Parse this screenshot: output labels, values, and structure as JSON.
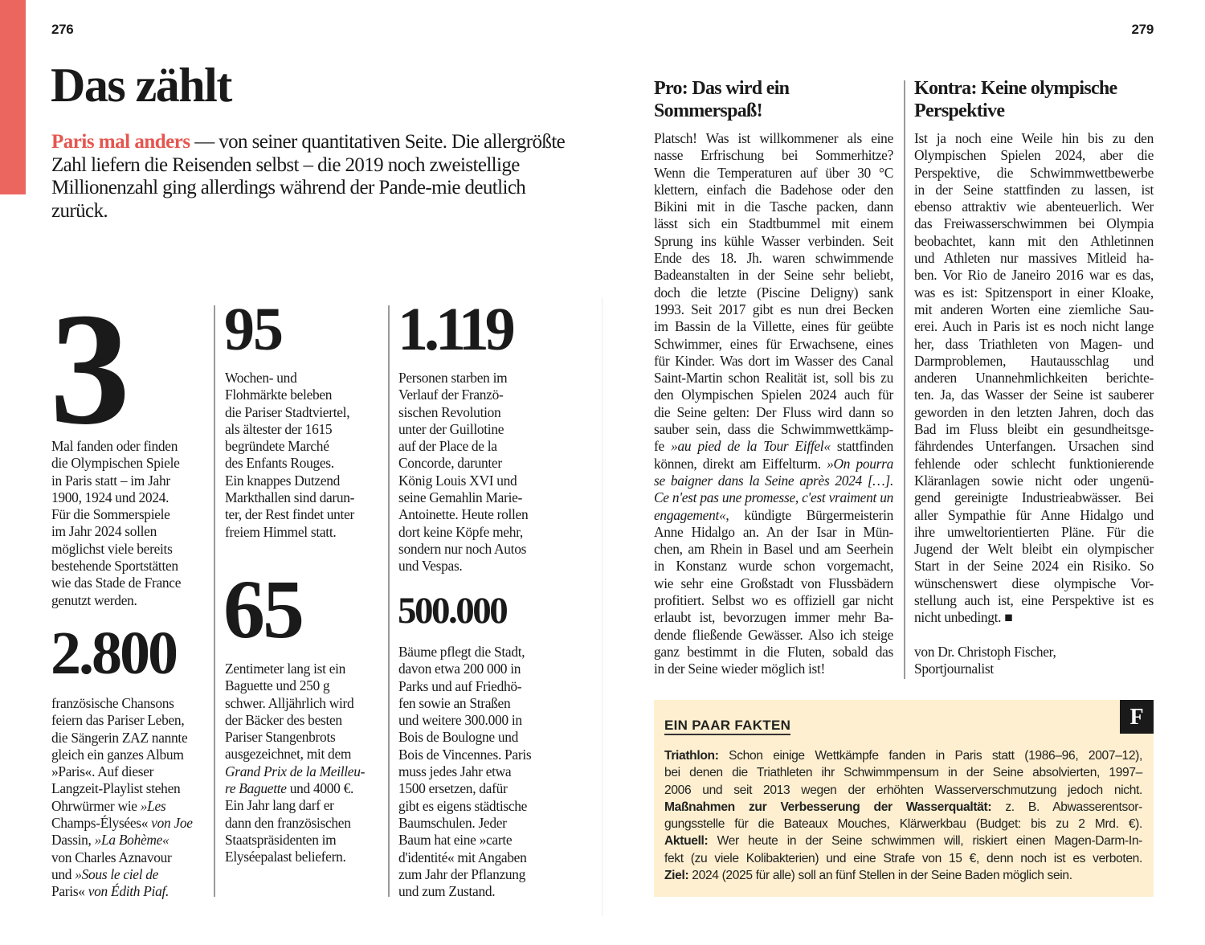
{
  "colors": {
    "accent": "#ec6660",
    "highlight_text": "#e5564f",
    "facts_background": "#fdefcf"
  },
  "left_page": {
    "page_number": "276",
    "title": "Das zählt",
    "intro_highlight": "Paris mal anders",
    "intro_text": " — von seiner quantitativen Seite. Die allergrößte Zahl liefern die Reisenden selbst – die 2019 noch zweistellige Millionenzahl ging allerdings während der Pande-mie deutlich zurück.",
    "facts": [
      {
        "number": "3",
        "lines": [
          "Mal fanden oder finden",
          "die Olympischen Spiele",
          "in Paris statt – im Jahr",
          "1900, 1924 und 2024.",
          "Für die Sommerspiele",
          "im Jahr 2024 sollen",
          "möglichst viele bereits",
          "bestehende Sportstätten",
          "wie das Stade de France",
          "genutzt werden."
        ]
      },
      {
        "number": "2.800",
        "lines": [
          "französische Chansons",
          "feiern das Pariser Leben,",
          "die Sängerin ZAZ nannte",
          "gleich ein ganzes Album",
          "»Paris«. Auf dieser",
          "Langzeit-Playlist stehen",
          "Ohrwürmer wie *»Les",
          "Champs-Élysées«* von Joe",
          "Dassin, *»La Bohème«*",
          "von Charles Aznavour",
          "und *»Sous le ciel de",
          "Paris«* von Édith Piaf."
        ]
      },
      {
        "number": "95",
        "lines": [
          "Wochen- und",
          "Flohmärkte beleben",
          "die Pariser Stadtviertel,",
          "als ältester der 1615",
          "begründete Marché",
          "des Enfants Rouges.",
          "Ein knappes Dutzend",
          "Markthallen sind darun-",
          "ter, der Rest findet unter",
          "freiem Himmel statt."
        ]
      },
      {
        "number": "65",
        "lines": [
          "Zentimeter lang ist ein",
          "Baguette und 250 g",
          "schwer. Alljährlich wird",
          "der Bäcker des besten",
          "Pariser Stangenbrots",
          "ausgezeichnet, mit dem",
          "*Grand Prix de la Meilleu-*",
          "*re Baguette* und 4000 €.",
          "Ein Jahr lang darf er",
          "dann den französischen",
          "Staatspräsidenten im",
          "Elyséepalast beliefern."
        ]
      },
      {
        "number": "1.119",
        "lines": [
          "Personen starben im",
          "Verlauf der Franzö-",
          "sischen Revolution",
          "unter der Guillotine",
          "auf der Place de la",
          "Concorde, darunter",
          "König Louis XVI und",
          "seine Gemahlin Marie-",
          "Antoinette. Heute rollen",
          "dort keine Köpfe mehr,",
          "sondern nur noch Autos",
          "und Vespas."
        ]
      },
      {
        "number": "500.000",
        "lines": [
          "Bäume pflegt die Stadt,",
          "davon etwa 200 000 in",
          "Parks und auf Friedhö-",
          "fen sowie an Straßen",
          "und weitere 300.000 in",
          "Bois de Boulogne und",
          "Bois de Vincennes. Paris",
          "muss jedes Jahr etwa",
          "1500 ersetzen, dafür",
          "gibt es eigens städtische",
          "Baumschulen. Jeder",
          "Baum hat eine »carte",
          "d'identité« mit Angaben",
          "zum Jahr der Pflanzung",
          "und zum Zustand."
        ]
      }
    ]
  },
  "right_page": {
    "page_number": "279",
    "pro": {
      "heading_lines": [
        "Pro: Das wird ein",
        "Sommerspaß!"
      ],
      "lines": [
        "Platsch! Was ist willkommener als eine",
        "nasse Erfrischung bei Sommerhitze?",
        "Wenn die Temperaturen auf über 30 °C",
        "klettern, einfach die Badehose oder den",
        "Bikini mit in die Tasche packen, dann",
        "lässt sich ein Stadtbummel mit einem",
        "Sprung ins kühle Wasser verbinden. Seit",
        "Ende des 18. Jh. waren schwimmende",
        "Badeanstalten in der Seine sehr beliebt,",
        "doch die letzte (Piscine Deligny) sank",
        "1993. Seit 2017 gibt es nun drei Becken",
        "im Bassin de la Villette, eines für geübte",
        "Schwimmer, eines für Erwachsene, eines",
        "für Kinder. Was dort im Wasser des Canal",
        "Saint-Martin schon Realität ist, soll bis zu",
        "den Olympischen Spielen 2024 auch für",
        "die Seine gelten: Der Fluss wird dann so",
        "sauber sein, dass die Schwimmwettkämp-",
        "fe *»au pied de la Tour Eiffel«* stattfinden",
        "können, direkt am Eiffelturm. *»On pourra*",
        "*se baigner dans la Seine après 2024 […].*",
        "*Ce n'est pas une promesse, c'est vraiment un*",
        "*engagement«*, kündigte Bürgermeisterin",
        "Anne Hidalgo an. An der Isar in Mün-",
        "chen, am Rhein in Basel und am Seerhein",
        "in Konstanz wurde schon vorgemacht,",
        "wie sehr eine Großstadt von Flussbädern",
        "profitiert. Selbst wo es offiziell gar nicht",
        "erlaubt ist, bevorzugen immer mehr Ba-",
        "dende fließende Gewässer. Also ich steige",
        "ganz bestimmt in die Fluten, sobald das",
        "in der Seine wieder möglich ist!"
      ]
    },
    "contra": {
      "heading_lines": [
        "Kontra: Keine olympische",
        "Perspektive"
      ],
      "lines": [
        "Ist ja noch eine Weile hin bis zu den",
        "Olympischen Spielen 2024, aber die",
        "Perspektive, die Schwimmwettbewerbe",
        "in der Seine stattfinden zu lassen, ist",
        "ebenso attraktiv wie abenteuerlich. Wer",
        "das Freiwasserschwimmen bei Olympia",
        "beobachtet, kann mit den Athletinnen",
        "und Athleten nur massives Mitleid ha-",
        "ben. Vor Rio de Janeiro 2016 war es das,",
        "was es ist: Spitzensport in einer Kloake,",
        "mit anderen Worten eine ziemliche Sau-",
        "erei. Auch in Paris ist es noch nicht lange",
        "her, dass Triathleten von Magen- und",
        "Darmproblemen, Hautausschlag und",
        "anderen Unannehmlichkeiten berichte-",
        "ten. Ja, das Wasser der Seine ist sauberer",
        "geworden in den letzten Jahren, doch das",
        "Bad im Fluss bleibt ein gesundheitsge-",
        "fährdendes Unterfangen. Ursachen sind",
        "fehlende oder schlecht funktionierende",
        "Kläranlagen sowie nicht oder ungenü-",
        "gend gereinigte Industrieabwässer. Bei",
        "aller Sympathie für Anne Hidalgo und",
        "ihre umweltorientierten Pläne. Für die",
        "Jugend der Welt bleibt ein olympischer",
        "Start in der Seine 2024 ein Risiko. So",
        "wünschenswert diese olympische Vor-",
        "stellung auch ist, eine Perspektive ist es",
        "nicht unbedingt. ■"
      ],
      "byline_lines": [
        "von Dr. Christoph Fischer,",
        "Sportjournalist"
      ]
    },
    "fact_box": {
      "badge": "F",
      "title": "EIN PAAR FAKTEN",
      "lines": [
        "*Triathlon:* Schon einige Wettkämpfe fanden in Paris statt (1986–96, 2007–12),",
        "bei denen die Triathleten ihr Schwimmpensum in der Seine absolvierten, 1997–",
        "2006 und seit 2013 wegen der erhöhten Wasserverschmutzung jedoch nicht.",
        "*Maßnahmen zur Verbesserung der Wasserqualtät:* z. B. Abwasserentsor-",
        "gungsstelle für die Bateaux Mouches, Klärwerkbau (Budget: bis zu 2 Mrd. €).",
        "*Aktuell:* Wer heute in der Seine schwimmen will, riskiert einen Magen-Darm-In-",
        "fekt (zu viele Kolibakterien) und eine Strafe von 15 €, denn noch ist es verboten.",
        "*Ziel:* 2024 (2025 für alle) soll an fünf Stellen in der Seine Baden möglich sein."
      ]
    }
  }
}
